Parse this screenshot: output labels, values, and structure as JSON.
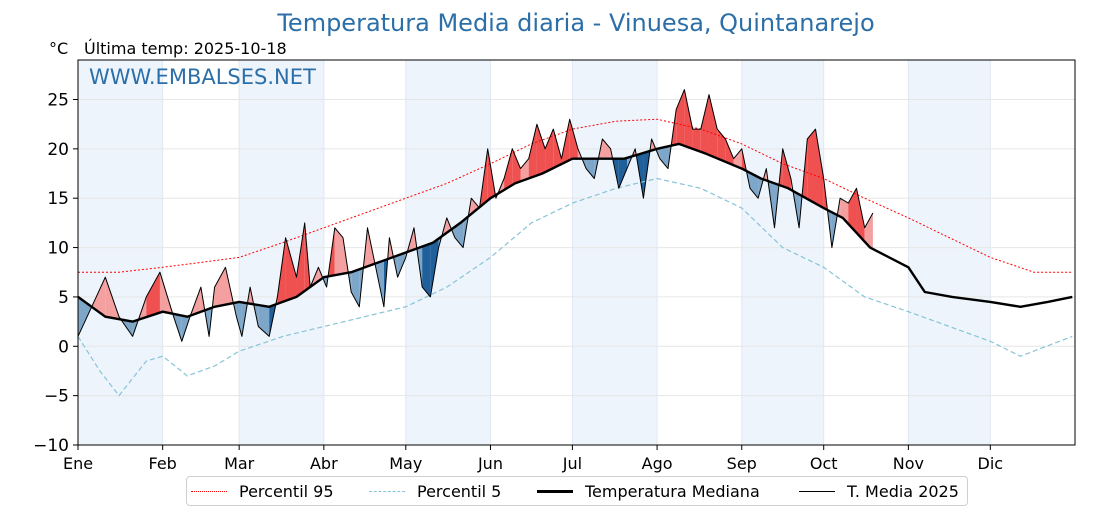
{
  "chart_data": {
    "type": "line",
    "title": "Temperatura Media diaria - Vinuesa, Quintanarejo",
    "unit": "°C",
    "last_temp_label": "Última temp: 2025-10-18",
    "watermark": "WWW.EMBALSES.NET",
    "ylim": [
      -10,
      29
    ],
    "yticks": [
      -10,
      -5,
      0,
      5,
      10,
      15,
      20,
      25
    ],
    "ytick_labels": [
      "−10",
      "−5",
      "0",
      "5",
      "10",
      "15",
      "20",
      "25"
    ],
    "xlim": [
      0,
      365
    ],
    "months": [
      "Ene",
      "Feb",
      "Mar",
      "Abr",
      "May",
      "Jun",
      "Jul",
      "Ago",
      "Sep",
      "Oct",
      "Nov",
      "Dic"
    ],
    "month_starts": [
      0,
      31,
      59,
      90,
      120,
      151,
      181,
      212,
      243,
      273,
      304,
      334
    ],
    "colors": {
      "title": "#2c6fa8",
      "p95": "#ff0000",
      "p5": "#87c3d8",
      "median": "#000000",
      "current": "#000000",
      "above_fill": "#f4a0a0",
      "above_fill_strong": "#ef5050",
      "below_fill": "#7ea6c8",
      "below_fill_strong": "#1f5f9a",
      "shade": "#eef4fb"
    },
    "series": [
      {
        "name": "Percentil 95",
        "days": [
          0,
          15,
          31,
          45,
          59,
          75,
          90,
          105,
          120,
          135,
          151,
          166,
          181,
          197,
          212,
          228,
          243,
          258,
          273,
          288,
          304,
          319,
          334,
          350,
          364
        ],
        "values": [
          7.5,
          7.5,
          8.0,
          8.5,
          9.0,
          10.5,
          12.0,
          13.5,
          15.0,
          16.5,
          18.5,
          20.5,
          22.0,
          22.8,
          23.0,
          22.0,
          20.5,
          18.5,
          17.0,
          15.0,
          13.0,
          11.0,
          9.0,
          7.5,
          7.5
        ]
      },
      {
        "name": "Percentil 5",
        "days": [
          0,
          8,
          15,
          25,
          31,
          40,
          50,
          59,
          75,
          90,
          105,
          120,
          135,
          151,
          166,
          181,
          197,
          212,
          228,
          243,
          258,
          273,
          288,
          304,
          319,
          334,
          345,
          364
        ],
        "values": [
          1.0,
          -2.5,
          -5.0,
          -1.5,
          -1.0,
          -3.0,
          -2.0,
          -0.5,
          1.0,
          2.0,
          3.0,
          4.0,
          6.0,
          9.0,
          12.5,
          14.5,
          16.0,
          17.0,
          16.0,
          14.0,
          10.0,
          8.0,
          5.0,
          3.5,
          2.0,
          0.5,
          -1.0,
          1.0
        ]
      },
      {
        "name": "Temperatura Mediana",
        "days": [
          0,
          10,
          20,
          31,
          40,
          50,
          59,
          70,
          80,
          90,
          100,
          110,
          120,
          130,
          140,
          151,
          160,
          170,
          181,
          190,
          200,
          212,
          220,
          230,
          243,
          250,
          260,
          273,
          280,
          290,
          304,
          310,
          320,
          334,
          345,
          355,
          364
        ],
        "values": [
          5.0,
          3.0,
          2.5,
          3.5,
          3.0,
          4.0,
          4.5,
          4.0,
          5.0,
          7.0,
          7.5,
          8.5,
          9.5,
          10.5,
          12.5,
          15.0,
          16.5,
          17.5,
          19.0,
          19.0,
          19.0,
          20.0,
          20.5,
          19.5,
          18.0,
          17.0,
          16.0,
          14.0,
          13.0,
          10.0,
          8.0,
          5.5,
          5.0,
          4.5,
          4.0,
          4.5,
          5.0
        ]
      },
      {
        "name": "T. Media 2025",
        "days": [
          0,
          5,
          10,
          15,
          20,
          25,
          30,
          35,
          38,
          41,
          45,
          48,
          50,
          54,
          58,
          60,
          63,
          66,
          70,
          73,
          76,
          80,
          83,
          85,
          88,
          91,
          94,
          97,
          100,
          103,
          106,
          109,
          112,
          114,
          117,
          120,
          123,
          126,
          129,
          132,
          135,
          138,
          141,
          144,
          147,
          150,
          153,
          156,
          159,
          162,
          165,
          168,
          171,
          174,
          177,
          180,
          183,
          186,
          189,
          192,
          195,
          198,
          201,
          204,
          207,
          210,
          213,
          216,
          219,
          222,
          225,
          228,
          231,
          234,
          237,
          240,
          243,
          246,
          249,
          252,
          255,
          258,
          261,
          264,
          267,
          270,
          273,
          276,
          279,
          282,
          285,
          288,
          291
        ],
        "values": [
          1.0,
          4.0,
          7.0,
          3.0,
          1.0,
          5.0,
          7.5,
          3.0,
          0.5,
          3.0,
          6.0,
          1.0,
          6.0,
          8.0,
          3.0,
          1.0,
          6.0,
          2.0,
          1.0,
          5.0,
          11.0,
          7.0,
          12.5,
          6.0,
          8.0,
          6.0,
          12.0,
          11.0,
          5.5,
          4.0,
          12.0,
          8.0,
          4.0,
          11.0,
          7.0,
          9.0,
          12.0,
          6.0,
          5.0,
          10.0,
          13.0,
          11.0,
          10.0,
          15.0,
          14.0,
          20.0,
          15.0,
          17.0,
          20.0,
          18.0,
          19.0,
          22.5,
          20.0,
          22.0,
          19.0,
          23.0,
          20.0,
          18.0,
          17.0,
          21.0,
          20.0,
          16.0,
          18.0,
          20.0,
          15.0,
          21.0,
          19.0,
          18.0,
          24.0,
          26.0,
          22.0,
          22.0,
          25.5,
          22.0,
          21.0,
          19.0,
          20.0,
          16.0,
          15.0,
          18.0,
          12.0,
          20.0,
          17.0,
          12.0,
          21.0,
          22.0,
          17.0,
          10.0,
          15.0,
          14.5,
          16.0,
          12.0,
          13.5
        ]
      }
    ],
    "legend": [
      "Percentil 95",
      "Percentil 5",
      "Temperatura Mediana",
      "T. Media 2025"
    ],
    "legend_position": "bottom-center"
  }
}
